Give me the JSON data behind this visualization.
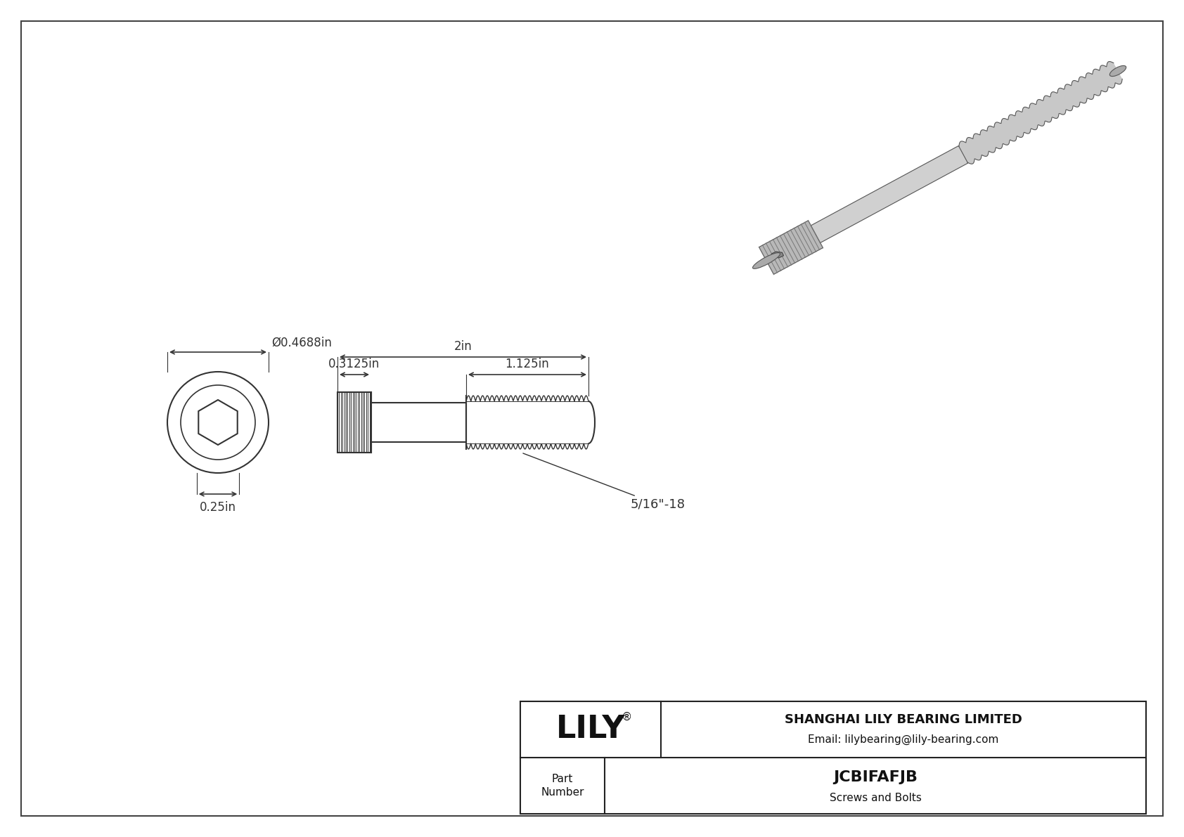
{
  "bg_color": "#ffffff",
  "line_color": "#333333",
  "dim_color": "#333333",
  "title_company": "SHANGHAI LILY BEARING LIMITED",
  "title_email": "Email: lilybearing@lily-bearing.com",
  "part_number": "JCBIFAFJB",
  "part_category": "Screws and Bolts",
  "part_label": "Part\nNumber",
  "logo_text": "LILY",
  "logo_reg": "®",
  "dim_diameter": "Ø0.4688in",
  "dim_height": "0.25in",
  "dim_head_width": "0.3125in",
  "dim_total_length": "2in",
  "dim_thread_length": "1.125in",
  "dim_thread_label": "5/16\"-18"
}
